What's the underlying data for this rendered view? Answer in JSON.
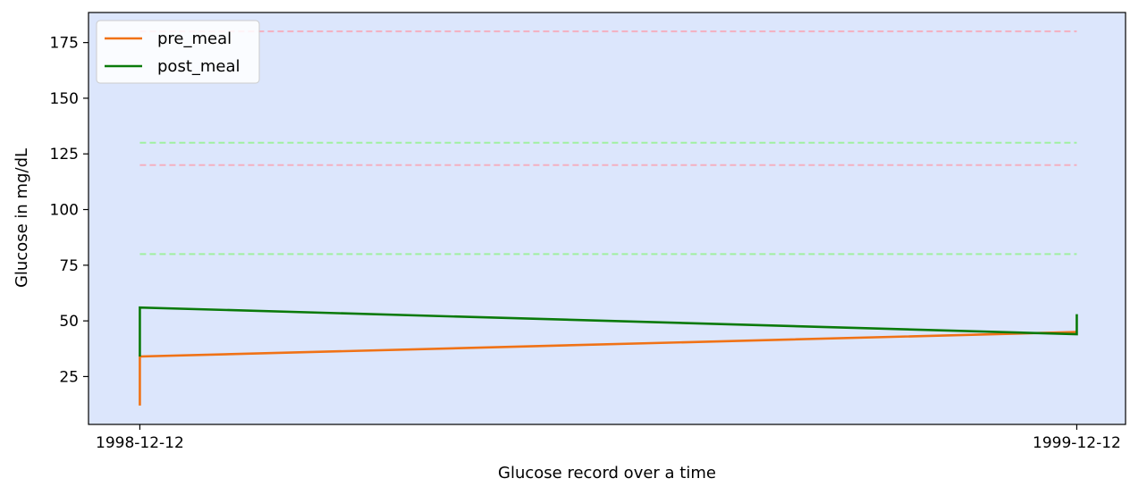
{
  "chart_data": {
    "type": "line",
    "title": "",
    "xlabel": "Glucose record over a time",
    "ylabel": "Glucose in mg/dL",
    "x_ticks": [
      "1998-12-12",
      "1999-12-12"
    ],
    "y_ticks": [
      25,
      50,
      75,
      100,
      125,
      150,
      175
    ],
    "ylim": [
      3.5,
      188.5
    ],
    "xlim": [
      "1998-11-22",
      "1999-12-31"
    ],
    "grid": false,
    "legend_position": "top-left",
    "plot_background": "#dce6fc",
    "series": [
      {
        "name": "pre_meal",
        "color": "#f07216",
        "x": [
          "1998-12-12",
          "1998-12-12",
          "1999-12-12"
        ],
        "y": [
          12,
          34,
          45
        ]
      },
      {
        "name": "post_meal",
        "color": "#0a7a0a",
        "x": [
          "1998-12-12",
          "1998-12-12",
          "1999-12-12",
          "1999-12-12"
        ],
        "y": [
          34,
          56,
          44,
          53
        ]
      }
    ],
    "reference_lines": [
      {
        "y": 180,
        "color": "#f4b0c0",
        "style": "dashed",
        "x_range": [
          "1998-12-12",
          "1999-12-12"
        ]
      },
      {
        "y": 130,
        "color": "#a0f0a0",
        "style": "dashed",
        "x_range": [
          "1998-12-12",
          "1999-12-12"
        ]
      },
      {
        "y": 120,
        "color": "#f4b0c0",
        "style": "dashed",
        "x_range": [
          "1998-12-12",
          "1999-12-12"
        ]
      },
      {
        "y": 80,
        "color": "#a0f0a0",
        "style": "dashed",
        "x_range": [
          "1998-12-12",
          "1999-12-12"
        ]
      }
    ]
  }
}
